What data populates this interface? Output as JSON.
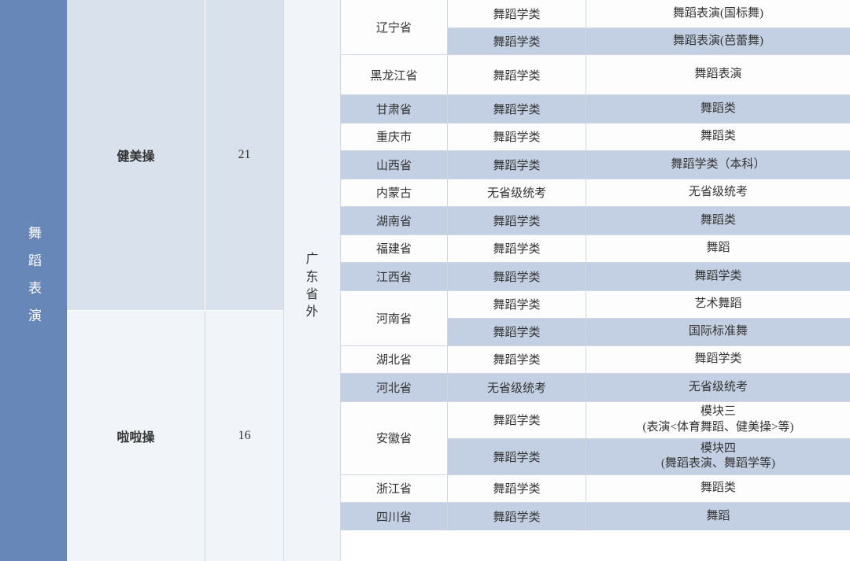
{
  "major": "舞蹈表演",
  "subcats": [
    {
      "name": "健美操",
      "num": "21"
    },
    {
      "name": "啦啦操",
      "num": "16"
    }
  ],
  "region": "广东省外",
  "rows": [
    {
      "prov": "辽宁省",
      "subs": [
        {
          "exam": "舞蹈学类",
          "subj": "舞蹈表演(国标舞)",
          "bg": "w"
        },
        {
          "exam": "舞蹈学类",
          "subj": "舞蹈表演(芭蕾舞)",
          "bg": "b"
        }
      ],
      "h": "h1"
    },
    {
      "prov": "黑龙江省",
      "subs": [
        {
          "exam": "舞蹈学类",
          "subj": "舞蹈表演",
          "bg": "w"
        }
      ],
      "h": "h-big"
    },
    {
      "prov": "甘肃省",
      "subs": [
        {
          "exam": "舞蹈学类",
          "subj": "舞蹈类",
          "bg": "b"
        }
      ],
      "h": "h1"
    },
    {
      "prov": "重庆市",
      "subs": [
        {
          "exam": "舞蹈学类",
          "subj": "舞蹈类",
          "bg": "w"
        }
      ],
      "h": "h1"
    },
    {
      "prov": "山西省",
      "subs": [
        {
          "exam": "舞蹈学类",
          "subj": "舞蹈学类（本科）",
          "bg": "b"
        }
      ],
      "h": "h1"
    },
    {
      "prov": "内蒙古",
      "subs": [
        {
          "exam": "无省级统考",
          "subj": "无省级统考",
          "bg": "w"
        }
      ],
      "h": "h1"
    },
    {
      "prov": "湖南省",
      "subs": [
        {
          "exam": "舞蹈学类",
          "subj": "舞蹈类",
          "bg": "b"
        }
      ],
      "h": "h1"
    },
    {
      "prov": "福建省",
      "subs": [
        {
          "exam": "舞蹈学类",
          "subj": "舞蹈",
          "bg": "w"
        }
      ],
      "h": "h1"
    },
    {
      "prov": "江西省",
      "subs": [
        {
          "exam": "舞蹈学类",
          "subj": "舞蹈学类",
          "bg": "b"
        }
      ],
      "h": "h1"
    },
    {
      "prov": "河南省",
      "subs": [
        {
          "exam": "舞蹈学类",
          "subj": "艺术舞蹈",
          "bg": "w"
        },
        {
          "exam": "舞蹈学类",
          "subj": "国际标准舞",
          "bg": "b"
        }
      ],
      "h": "h1"
    },
    {
      "prov": "湖北省",
      "subs": [
        {
          "exam": "舞蹈学类",
          "subj": "舞蹈学类",
          "bg": "w"
        }
      ],
      "h": "h1"
    },
    {
      "prov": "河北省",
      "subs": [
        {
          "exam": "无省级统考",
          "subj": "无省级统考",
          "bg": "b"
        }
      ],
      "h": "h1"
    },
    {
      "prov": "安徽省",
      "subs": [
        {
          "exam": "舞蹈学类",
          "subj": "模块三\n(表演<体育舞蹈、健美操>等)",
          "bg": "w"
        },
        {
          "exam": "舞蹈学类",
          "subj": "模块四\n(舞蹈表演、舞蹈学等)",
          "bg": "b"
        }
      ],
      "h": "h2"
    },
    {
      "prov": "浙江省",
      "subs": [
        {
          "exam": "舞蹈学类",
          "subj": "舞蹈类",
          "bg": "w"
        }
      ],
      "h": "h1"
    },
    {
      "prov": "四川省",
      "subs": [
        {
          "exam": "舞蹈学类",
          "subj": "舞蹈",
          "bg": "b"
        }
      ],
      "h": "h1"
    }
  ]
}
